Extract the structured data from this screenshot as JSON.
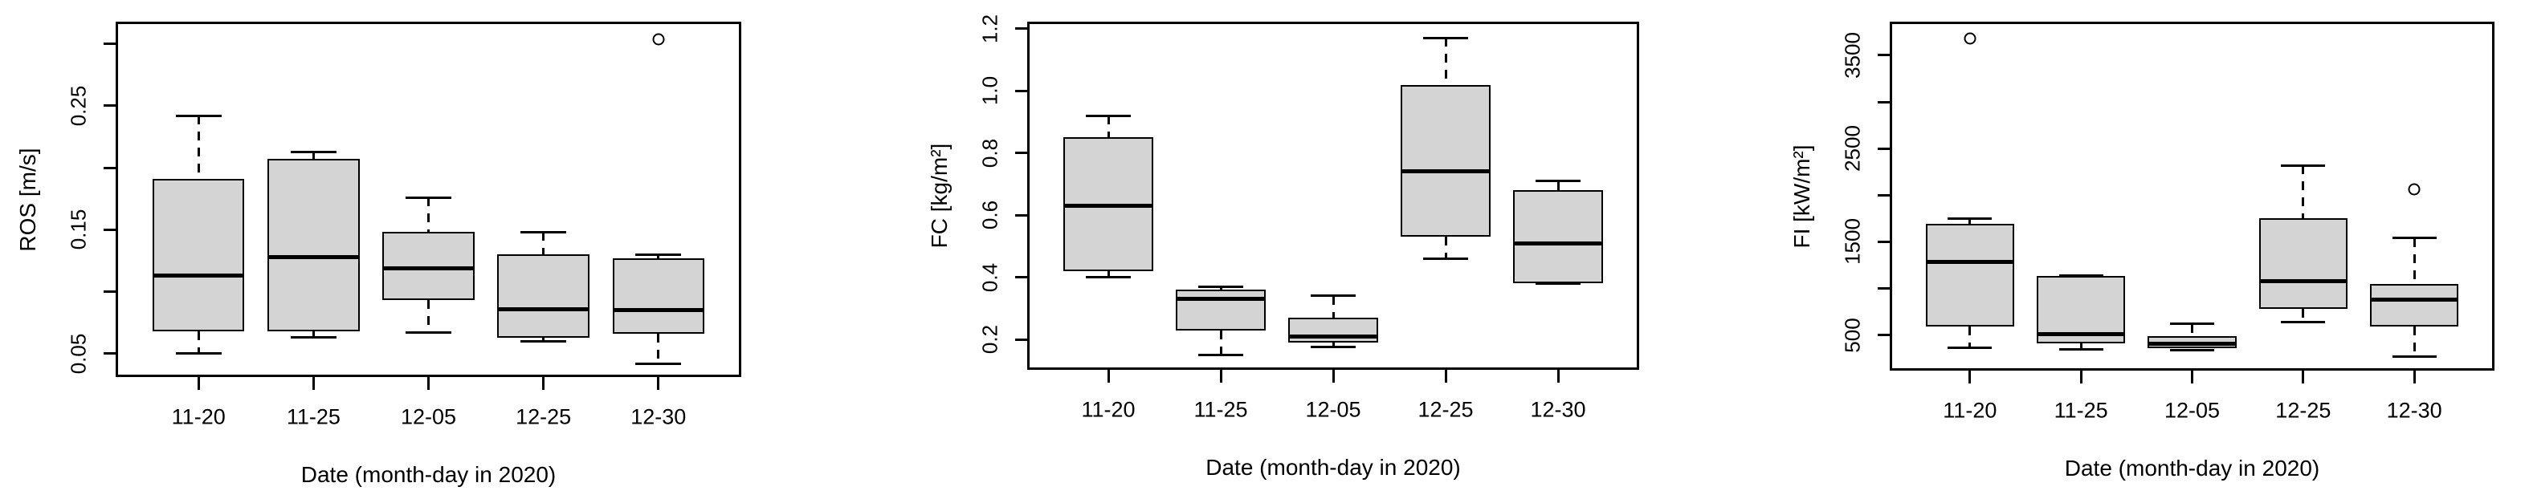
{
  "figure": {
    "background": "#ffffff",
    "box_fill": "#d4d4d4",
    "line_color": "#000000"
  },
  "chart_data": [
    {
      "type": "boxplot",
      "title": "",
      "xlabel": "Date (month-day in 2020)",
      "ylabel": "ROS [m/s]",
      "categories": [
        "11-20",
        "11-25",
        "12-05",
        "12-25",
        "12-30"
      ],
      "ylim": [
        0.033,
        0.316
      ],
      "grid": false,
      "yticks": [
        {
          "v": 0.05,
          "label": "0.05"
        },
        {
          "v": 0.1,
          "label": ""
        },
        {
          "v": 0.15,
          "label": "0.15"
        },
        {
          "v": 0.2,
          "label": ""
        },
        {
          "v": 0.25,
          "label": "0.25"
        },
        {
          "v": 0.3,
          "label": ""
        }
      ],
      "boxes": [
        {
          "category": "11-20",
          "whisker_low": 0.05,
          "q1": 0.068,
          "median": 0.113,
          "q3": 0.191,
          "whisker_high": 0.242,
          "outliers": []
        },
        {
          "category": "11-25",
          "whisker_low": 0.063,
          "q1": 0.068,
          "median": 0.128,
          "q3": 0.207,
          "whisker_high": 0.213,
          "outliers": []
        },
        {
          "category": "12-05",
          "whisker_low": 0.067,
          "q1": 0.093,
          "median": 0.119,
          "q3": 0.148,
          "whisker_high": 0.176,
          "outliers": []
        },
        {
          "category": "12-25",
          "whisker_low": 0.06,
          "q1": 0.063,
          "median": 0.086,
          "q3": 0.13,
          "whisker_high": 0.148,
          "outliers": []
        },
        {
          "category": "12-30",
          "whisker_low": 0.042,
          "q1": 0.066,
          "median": 0.085,
          "q3": 0.127,
          "whisker_high": 0.13,
          "outliers": [
            0.304
          ]
        }
      ]
    },
    {
      "type": "boxplot",
      "title": "",
      "xlabel": "Date (month-day in 2020)",
      "ylabel": "FC [kg/m²]",
      "categories": [
        "11-20",
        "11-25",
        "12-05",
        "12-25",
        "12-30"
      ],
      "ylim": [
        0.11,
        1.215
      ],
      "grid": false,
      "yticks": [
        {
          "v": 0.2,
          "label": "0.2"
        },
        {
          "v": 0.4,
          "label": "0.4"
        },
        {
          "v": 0.6,
          "label": "0.6"
        },
        {
          "v": 0.8,
          "label": "0.8"
        },
        {
          "v": 1.0,
          "label": "1.0"
        },
        {
          "v": 1.2,
          "label": "1.2"
        }
      ],
      "boxes": [
        {
          "category": "11-20",
          "whisker_low": 0.4,
          "q1": 0.42,
          "median": 0.63,
          "q3": 0.85,
          "whisker_high": 0.92,
          "outliers": []
        },
        {
          "category": "11-25",
          "whisker_low": 0.15,
          "q1": 0.23,
          "median": 0.33,
          "q3": 0.36,
          "whisker_high": 0.37,
          "outliers": []
        },
        {
          "category": "12-05",
          "whisker_low": 0.175,
          "q1": 0.19,
          "median": 0.21,
          "q3": 0.27,
          "whisker_high": 0.34,
          "outliers": []
        },
        {
          "category": "12-25",
          "whisker_low": 0.46,
          "q1": 0.53,
          "median": 0.74,
          "q3": 1.02,
          "whisker_high": 1.17,
          "outliers": []
        },
        {
          "category": "12-30",
          "whisker_low": 0.38,
          "q1": 0.38,
          "median": 0.51,
          "q3": 0.68,
          "whisker_high": 0.71,
          "outliers": []
        }
      ]
    },
    {
      "type": "boxplot",
      "title": "",
      "xlabel": "Date (month-day in 2020)",
      "ylabel": "FI [kW/m²]",
      "categories": [
        "11-20",
        "11-25",
        "12-05",
        "12-25",
        "12-30"
      ],
      "ylim": [
        144,
        3835
      ],
      "grid": false,
      "yticks": [
        {
          "v": 500,
          "label": "500"
        },
        {
          "v": 1000,
          "label": ""
        },
        {
          "v": 1500,
          "label": "1500"
        },
        {
          "v": 2000,
          "label": ""
        },
        {
          "v": 2500,
          "label": "2500"
        },
        {
          "v": 3000,
          "label": ""
        },
        {
          "v": 3500,
          "label": "3500"
        }
      ],
      "boxes": [
        {
          "category": "11-20",
          "whisker_low": 360,
          "q1": 590,
          "median": 1280,
          "q3": 1690,
          "whisker_high": 1750,
          "outliers": [
            3680
          ]
        },
        {
          "category": "11-25",
          "whisker_low": 350,
          "q1": 410,
          "median": 510,
          "q3": 1130,
          "whisker_high": 1140,
          "outliers": []
        },
        {
          "category": "12-05",
          "whisker_low": 340,
          "q1": 355,
          "median": 410,
          "q3": 490,
          "whisker_high": 620,
          "outliers": []
        },
        {
          "category": "12-25",
          "whisker_low": 640,
          "q1": 780,
          "median": 1080,
          "q3": 1750,
          "whisker_high": 2320,
          "outliers": []
        },
        {
          "category": "12-30",
          "whisker_low": 270,
          "q1": 590,
          "median": 880,
          "q3": 1050,
          "whisker_high": 1540,
          "outliers": [
            2060
          ]
        }
      ]
    }
  ]
}
